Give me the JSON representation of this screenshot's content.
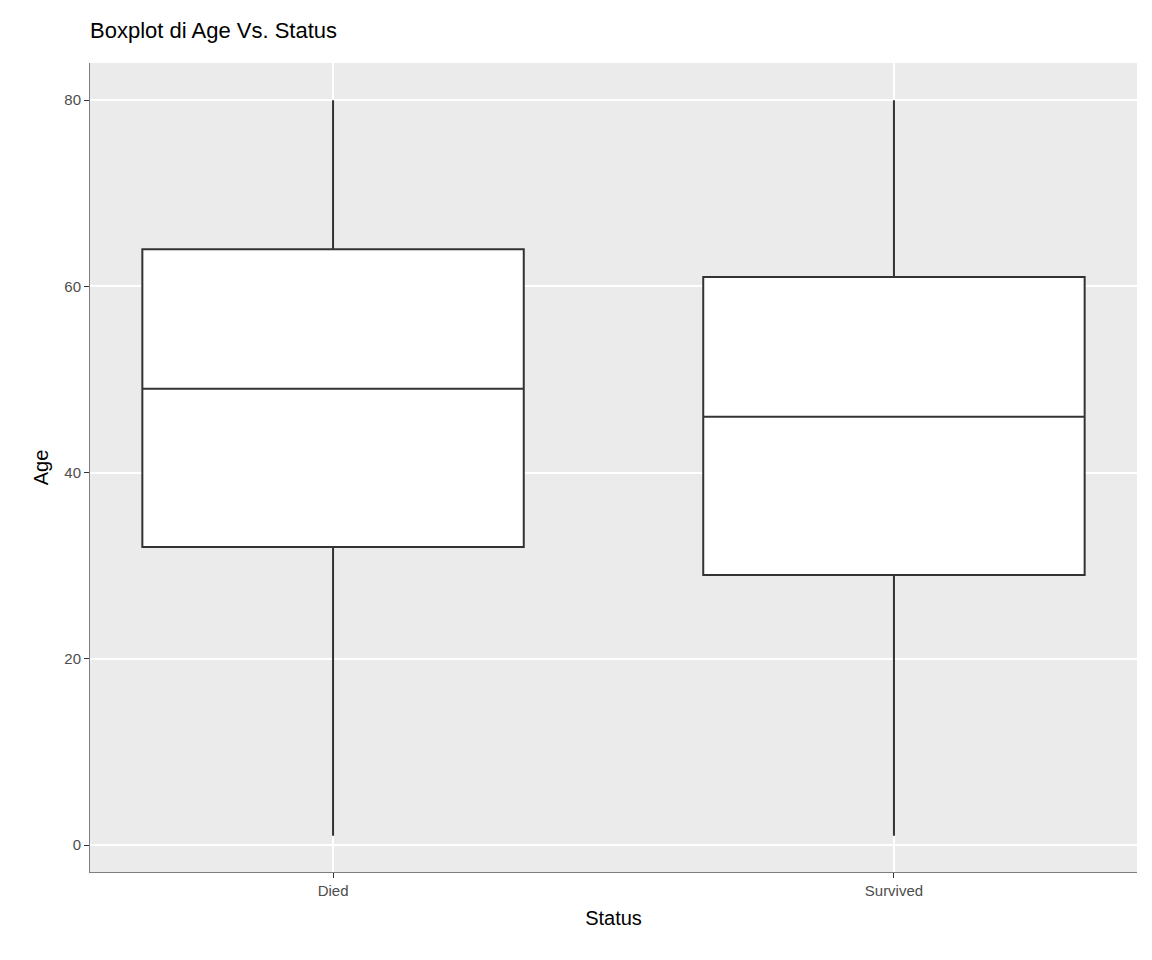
{
  "chart_data": {
    "type": "box",
    "title": "Boxplot di Age Vs. Status",
    "xlabel": "Status",
    "ylabel": "Age",
    "categories": [
      "Died",
      "Survived"
    ],
    "lower": [
      1,
      1
    ],
    "q1": [
      32,
      29
    ],
    "median": [
      49,
      46
    ],
    "q3": [
      64,
      61
    ],
    "upper": [
      80,
      80
    ],
    "ylim": [
      -2.9,
      84
    ],
    "yticks": [
      0,
      20,
      40,
      60,
      80
    ],
    "grid": true
  }
}
